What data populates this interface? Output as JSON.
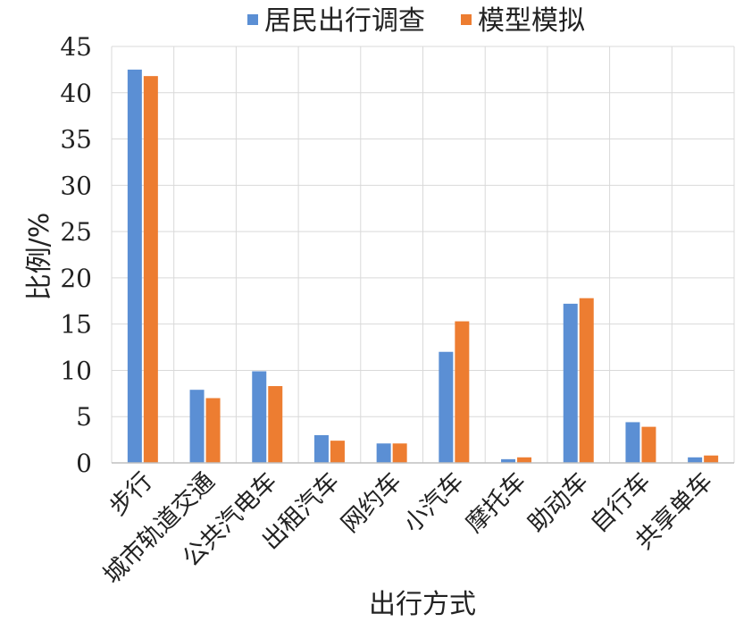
{
  "chart_data": {
    "type": "bar",
    "title": "",
    "xlabel": "出行方式",
    "ylabel": "比例/%",
    "ylim": [
      0,
      45
    ],
    "yticks": [
      0,
      5,
      10,
      15,
      20,
      25,
      30,
      35,
      40,
      45
    ],
    "grid": true,
    "legend_position": "top",
    "categories": [
      "步行",
      "城市轨道交通",
      "公共汽电车",
      "出租汽车",
      "网约车",
      "小汽车",
      "摩托车",
      "助动车",
      "自行车",
      "共享单车"
    ],
    "series": [
      {
        "name": "居民出行调查",
        "color": "#5b8fd4",
        "values": [
          42.5,
          7.9,
          9.9,
          3.0,
          2.1,
          12.0,
          0.4,
          17.2,
          4.4,
          0.6
        ]
      },
      {
        "name": "模型模拟",
        "color": "#ed7d31",
        "values": [
          41.8,
          7.0,
          8.3,
          2.4,
          2.1,
          15.3,
          0.6,
          17.8,
          3.9,
          0.8
        ]
      }
    ]
  }
}
